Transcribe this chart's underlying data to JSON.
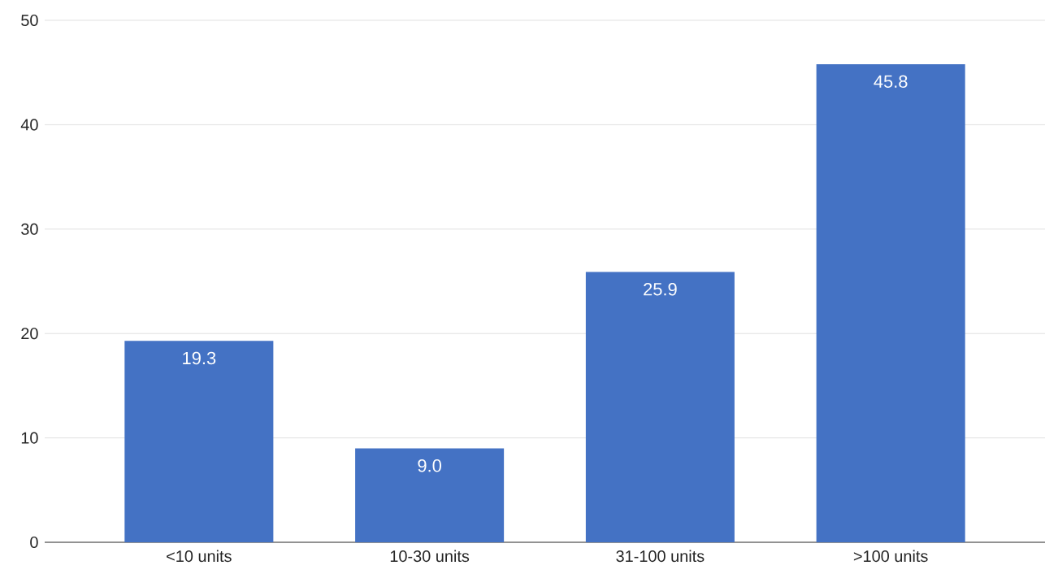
{
  "chart_data": {
    "type": "bar",
    "categories": [
      "<10 units",
      "10-30 units",
      "31-100 units",
      ">100 units"
    ],
    "values": [
      19.3,
      9.0,
      25.9,
      45.8
    ],
    "value_labels": [
      "19.3",
      "9.0",
      "25.9",
      "45.8"
    ],
    "color": "#4472c4",
    "ylim": [
      0,
      50
    ],
    "yticks": [
      0,
      10,
      20,
      30,
      40,
      50
    ],
    "grid": "y"
  }
}
